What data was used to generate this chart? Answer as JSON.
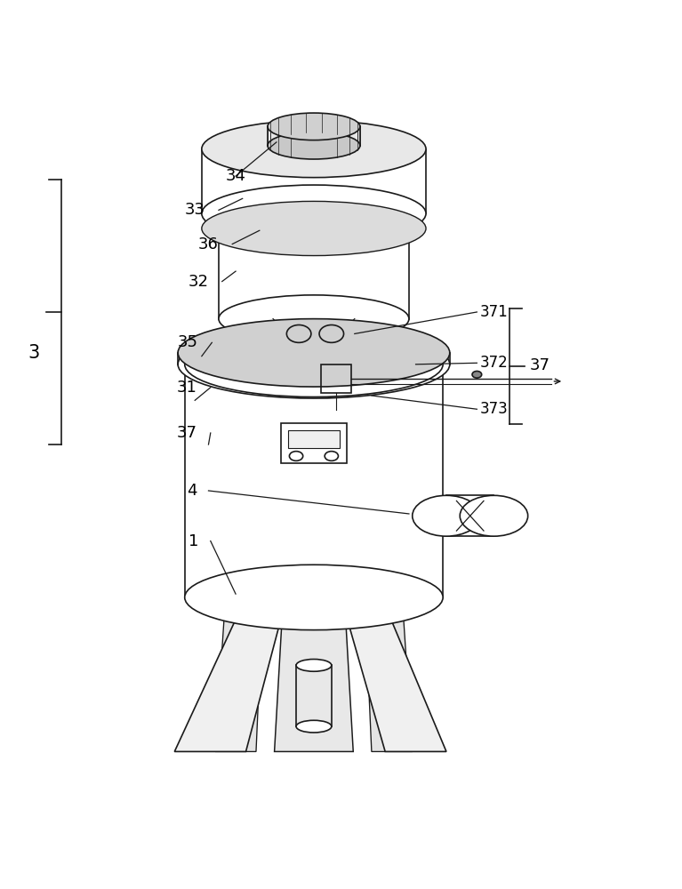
{
  "bg_color": "#ffffff",
  "line_color": "#1a1a1a",
  "line_width": 1.2,
  "label_fontsize": 13,
  "label_color": "#000000"
}
